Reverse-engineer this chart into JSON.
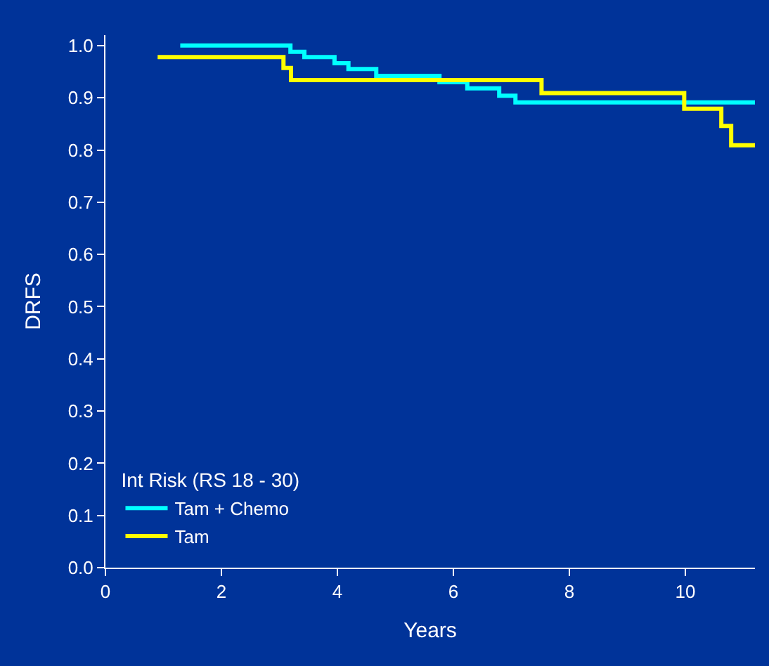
{
  "chart_data": {
    "type": "step",
    "xlabel": "Years",
    "ylabel": "DRFS",
    "legend_title": "Int Risk (RS 18 - 30)",
    "xlim": [
      0,
      11.2
    ],
    "xticks": [
      0,
      2,
      4,
      6,
      8,
      10
    ],
    "ylim": [
      0,
      1.02
    ],
    "yticks": [
      {
        "value": 0,
        "label": "0.0"
      },
      0.1,
      0.2,
      0.3,
      0.4,
      0.5,
      0.6,
      0.7,
      0.8,
      0.9,
      {
        "value": 1,
        "label": "1.0"
      }
    ],
    "grid": false,
    "legend": "bottom left",
    "series": [
      {
        "name": "Tam + Chemo",
        "color": "#00ffff",
        "x": [
          1.29,
          3.19,
          3.43,
          3.95,
          4.19,
          4.67,
          5.76,
          6.24,
          6.79,
          7.07,
          11.2
        ],
        "values": [
          1.0,
          0.988,
          0.978,
          0.966,
          0.955,
          0.942,
          0.93,
          0.918,
          0.904,
          0.891,
          0.891
        ]
      },
      {
        "name": "Tam",
        "color": "#ffff00",
        "x": [
          0.9,
          3.07,
          3.2,
          7.52,
          9.98,
          10.62,
          10.79,
          11.2
        ],
        "values": [
          0.978,
          0.957,
          0.934,
          0.909,
          0.879,
          0.846,
          0.809,
          0.809
        ]
      }
    ]
  }
}
